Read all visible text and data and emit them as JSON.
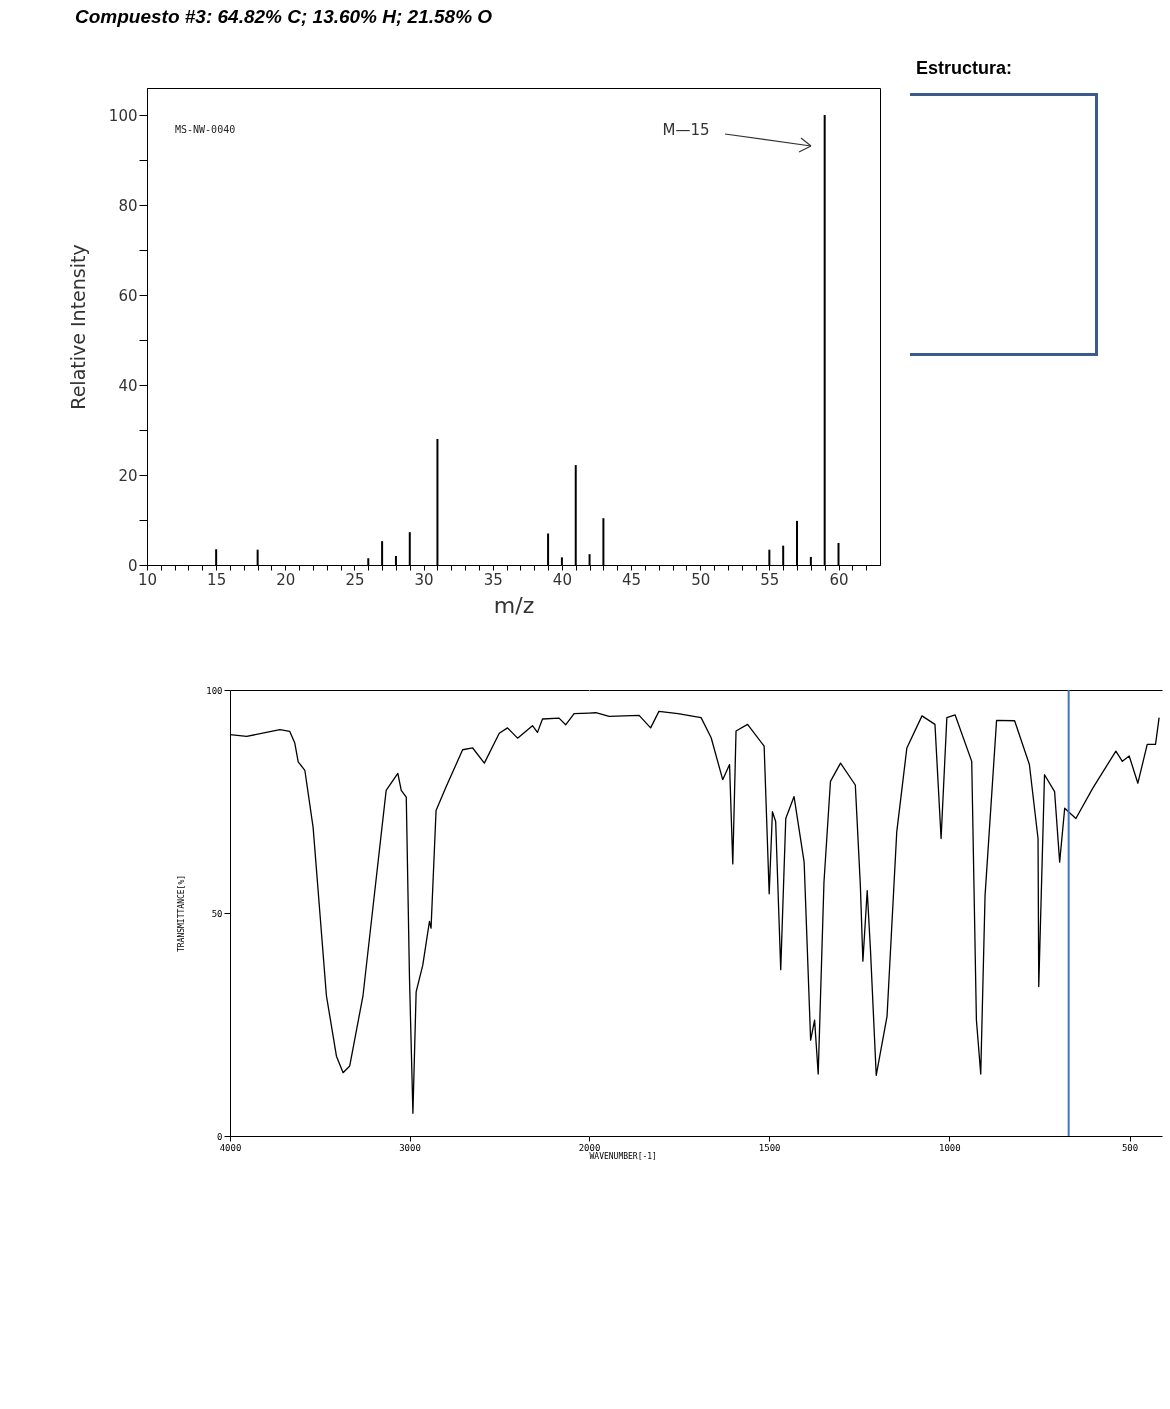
{
  "chart_data": [
    {
      "type": "bar",
      "title": "Compuesto #3:  64.82% C; 13.60% H; 21.58% O",
      "xlabel": "m/z",
      "ylabel": "Relative Intensity",
      "x": [
        15,
        18,
        26,
        27,
        28,
        29,
        31,
        39,
        40,
        41,
        42,
        43,
        55,
        56,
        57,
        58,
        59,
        60
      ],
      "values": [
        3.5,
        3.4,
        1.5,
        5.3,
        2,
        7.3,
        28,
        7,
        1.7,
        22.2,
        2.4,
        10.4,
        3.4,
        4.3,
        9.8,
        1.8,
        100,
        4.9
      ],
      "color": "#000000",
      "xlim": [
        10,
        63
      ],
      "ylim": [
        0,
        106
      ],
      "xticks": [
        10,
        {
          "value": 11,
          "label": null
        },
        {
          "value": 12,
          "label": null
        },
        {
          "value": 13,
          "label": null
        },
        {
          "value": 14,
          "label": null
        },
        15,
        {
          "value": 16,
          "label": null
        },
        {
          "value": 17,
          "label": null
        },
        {
          "value": 18,
          "label": null
        },
        {
          "value": 19,
          "label": null
        },
        20,
        {
          "value": 21,
          "label": null
        },
        {
          "value": 22,
          "label": null
        },
        {
          "value": 23,
          "label": null
        },
        {
          "value": 24,
          "label": null
        },
        25,
        {
          "value": 26,
          "label": null
        },
        {
          "value": 27,
          "label": null
        },
        {
          "value": 28,
          "label": null
        },
        {
          "value": 29,
          "label": null
        },
        30,
        {
          "value": 31,
          "label": null
        },
        {
          "value": 32,
          "label": null
        },
        {
          "value": 33,
          "label": null
        },
        {
          "value": 34,
          "label": null
        },
        35,
        {
          "value": 36,
          "label": null
        },
        {
          "value": 37,
          "label": null
        },
        {
          "value": 38,
          "label": null
        },
        {
          "value": 39,
          "label": null
        },
        40,
        {
          "value": 41,
          "label": null
        },
        {
          "value": 42,
          "label": null
        },
        {
          "value": 43,
          "label": null
        },
        {
          "value": 44,
          "label": null
        },
        45,
        {
          "value": 46,
          "label": null
        },
        {
          "value": 47,
          "label": null
        },
        {
          "value": 48,
          "label": null
        },
        {
          "value": 49,
          "label": null
        },
        50,
        {
          "value": 51,
          "label": null
        },
        {
          "value": 52,
          "label": null
        },
        {
          "value": 53,
          "label": null
        },
        {
          "value": 54,
          "label": null
        },
        55,
        {
          "value": 56,
          "label": null
        },
        {
          "value": 57,
          "label": null
        },
        {
          "value": 58,
          "label": null
        },
        {
          "value": 59,
          "label": null
        },
        60,
        {
          "value": 61,
          "label": null
        },
        {
          "value": 62,
          "label": null
        }
      ],
      "yticks": [
        0,
        {
          "value": 10,
          "label": null
        },
        20,
        {
          "value": 30,
          "label": null
        },
        40,
        {
          "value": 50,
          "label": null
        },
        60,
        {
          "value": 70,
          "label": null
        },
        80,
        {
          "value": 90,
          "label": null
        },
        100
      ],
      "annotations": [
        "MS-NW-0040",
        "M—15",
        "Estructura:"
      ]
    },
    {
      "type": "line",
      "ylabel": "TRANSMITTANCE[%]",
      "x": [
        4000,
        3907,
        3722,
        3667,
        3639,
        3620,
        3583,
        3537,
        3500,
        3463,
        3407,
        3370,
        3333,
        3259,
        3185,
        3130,
        3065,
        3046,
        3018,
        3000,
        2981,
        2963,
        2926,
        2889,
        2880,
        2852,
        2796,
        2704,
        2648,
        2583,
        2500,
        2454,
        2398,
        2315,
        2287,
        2259,
        2167,
        2130,
        2083,
        2000
      ],
      "values": [
        90,
        89.6,
        91.1,
        90.7,
        88.1,
        83.9,
        82,
        69.2,
        50.4,
        31.5,
        17.9,
        14.2,
        15.7,
        31.5,
        57.9,
        77.5,
        81.3,
        77.5,
        76,
        35.3,
        5.1,
        32.3,
        38.3,
        48.1,
        46.6,
        73,
        78.3,
        86.6,
        87,
        83.6,
        90.3,
        91.5,
        89.2,
        92,
        90.5,
        93.5,
        93.7,
        92.2,
        94.7,
        94.8
      ],
      "color": "#000000",
      "xlim": [
        4000,
        2000
      ],
      "ylim": [
        0,
        100
      ],
      "xticks": [
        4000,
        3000
      ],
      "yticks": [
        0,
        50,
        100
      ]
    },
    {
      "type": "line",
      "xlabel": "WAVENUMBER[-1]",
      "x": [
        2000,
        1981,
        1944,
        1861,
        1829,
        1806,
        1753,
        1689,
        1661,
        1629,
        1610,
        1601,
        1592,
        1560,
        1514,
        1500,
        1491,
        1482,
        1468,
        1454,
        1431,
        1403,
        1385,
        1374,
        1364,
        1348,
        1330,
        1302,
        1261,
        1247,
        1240,
        1228,
        1219,
        1203,
        1173,
        1146,
        1118,
        1076,
        1040,
        1023,
        1007,
        984,
        938,
        925,
        913,
        901,
        869,
        819,
        778,
        754,
        752,
        736,
        708,
        694,
        680,
        649,
        602,
        538,
        520,
        501,
        477,
        451,
        428,
        418
      ],
      "values": [
        94.8,
        94.9,
        94.1,
        94.3,
        91.5,
        95.2,
        94.7,
        93.8,
        89.3,
        79.9,
        83.3,
        61,
        90.8,
        92.3,
        87.4,
        54.3,
        72.7,
        70.5,
        37.3,
        71.2,
        76.1,
        61.4,
        21.5,
        26,
        13.9,
        56.9,
        79.5,
        83.6,
        78.7,
        56.1,
        39.2,
        55,
        41.8,
        13.6,
        26.8,
        68.2,
        87,
        94.2,
        92.3,
        66.7,
        93.8,
        94.4,
        84,
        26,
        13.9,
        53.9,
        93.2,
        93.1,
        83.3,
        66.7,
        33.5,
        81,
        77.2,
        61.4,
        73.5,
        71.2,
        78,
        86.3,
        84,
        85.2,
        79.1,
        87.8,
        87.8,
        93.8
      ],
      "color": "#000000",
      "xlim": [
        2000,
        410
      ],
      "ylim": [
        0,
        100
      ],
      "xticks": [
        2000,
        1500,
        1000,
        500
      ],
      "yticks": [
        0,
        50,
        100
      ],
      "tick_labels": "x",
      "ref_lines": [
        {
          "axis": "x",
          "value": 669,
          "color": "#4472c4"
        }
      ]
    }
  ]
}
